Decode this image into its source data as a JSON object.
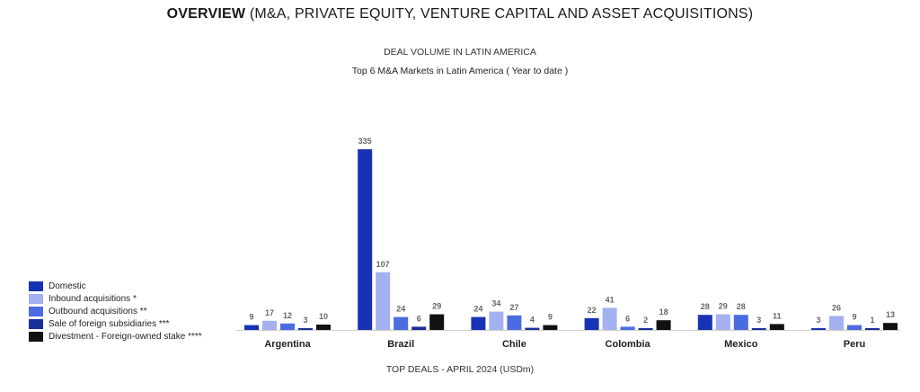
{
  "header": {
    "title_bold": "OVERVIEW",
    "title_rest": " (M&A, PRIVATE EQUITY, VENTURE CAPITAL AND ASSET ACQUISITIONS)",
    "subtitle": "DEAL VOLUME IN LATIN AMERICA",
    "chart_title": "Top 6 M&A Markets in Latin America ( Year to date )"
  },
  "footer": {
    "text": "TOP DEALS - APRIL 2024 (USDm)"
  },
  "chart_data": {
    "type": "bar",
    "title": "Top 6 M&A Markets in Latin America ( Year to date )",
    "xlabel": "",
    "ylabel": "",
    "grid": false,
    "legend_position": "bottom-left",
    "categories": [
      "Argentina",
      "Brazil",
      "Chile",
      "Colombia",
      "Mexico",
      "Peru"
    ],
    "ylim": [
      0,
      335
    ],
    "series": [
      {
        "name": "Domestic",
        "color": "#1733b5",
        "values": [
          9,
          335,
          24,
          22,
          28,
          3
        ]
      },
      {
        "name": "Inbound acquisitions *",
        "color": "#a3b1f1",
        "values": [
          17,
          107,
          34,
          41,
          29,
          26
        ]
      },
      {
        "name": "Outbound acquisitions **",
        "color": "#4b6ce1",
        "values": [
          12,
          24,
          27,
          6,
          28,
          9
        ]
      },
      {
        "name": "Sale of foreign subsidiaries ***",
        "color": "#1a2f95",
        "values": [
          3,
          6,
          4,
          2,
          3,
          1
        ]
      },
      {
        "name": "Divestment - Foreign-owned stake ****",
        "color": "#111111",
        "values": [
          10,
          29,
          9,
          18,
          11,
          13
        ]
      }
    ]
  }
}
